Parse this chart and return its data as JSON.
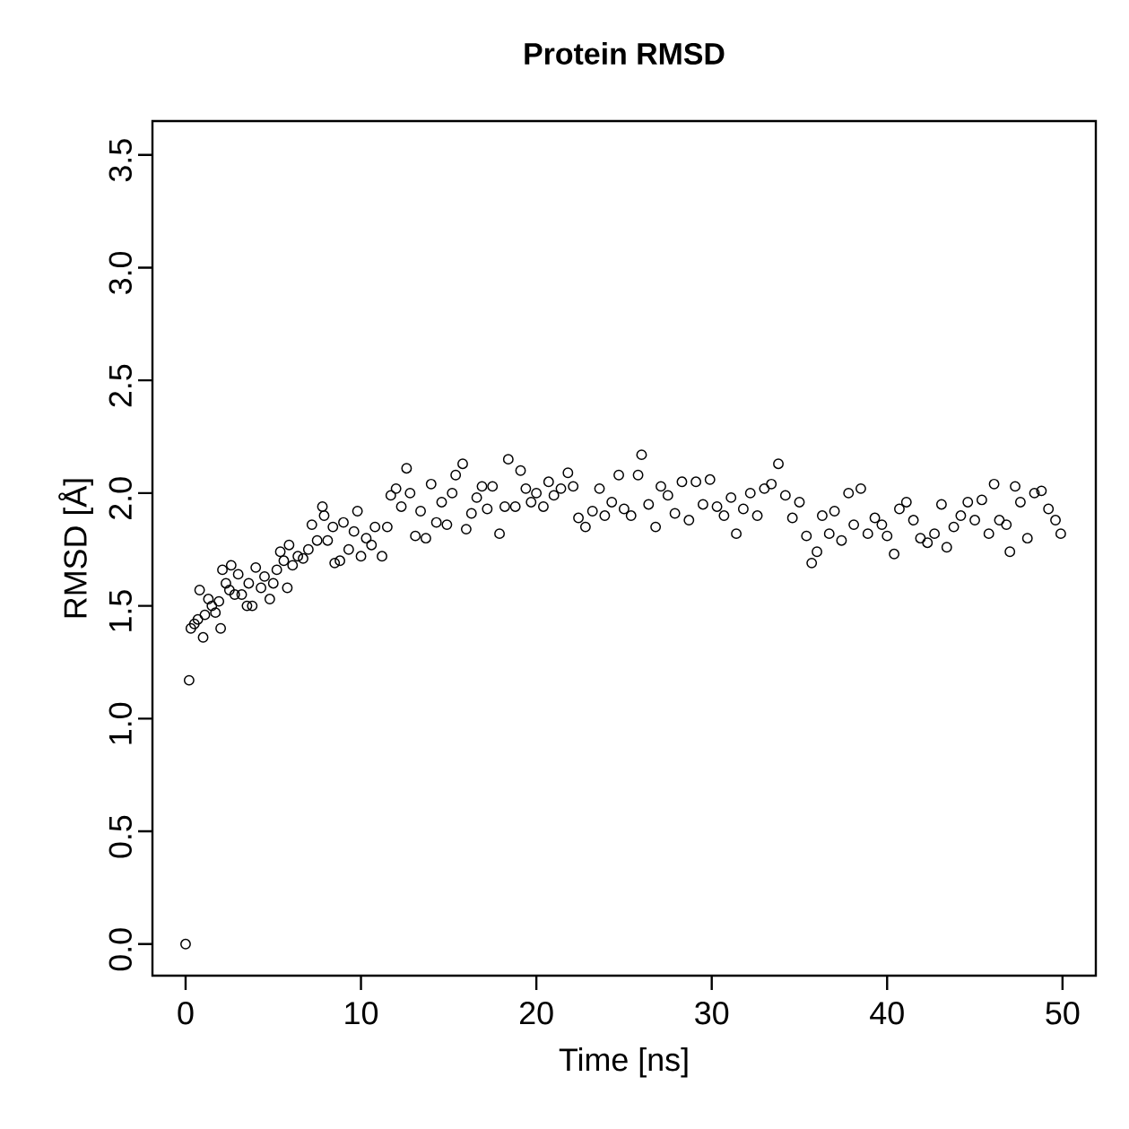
{
  "chart_data": {
    "type": "scatter",
    "title": "Protein RMSD",
    "xlabel": "Time [ns]",
    "ylabel": "RMSD [Å]",
    "xlim": [
      -1.89,
      51.9
    ],
    "ylim": [
      -0.14,
      3.65
    ],
    "xticks": [
      0,
      10,
      20,
      30,
      40,
      50
    ],
    "yticks": [
      {
        "value": 0,
        "label": "0.0"
      },
      {
        "value": 0.5,
        "label": "0.5"
      },
      {
        "value": 1,
        "label": "1.0"
      },
      {
        "value": 1.5,
        "label": "1.5"
      },
      {
        "value": 2,
        "label": "2.0"
      },
      {
        "value": 2.5,
        "label": "2.5"
      },
      {
        "value": 3,
        "label": "3.0"
      },
      {
        "value": 3.5,
        "label": "3.5"
      }
    ],
    "marker": "circle",
    "grid": false,
    "series": [
      {
        "color": "#000000",
        "x": [
          0,
          0.2,
          0.3,
          0.5,
          0.7,
          0.8,
          1.0,
          1.1,
          1.3,
          1.5,
          1.7,
          1.9,
          2.0,
          2.1,
          2.3,
          2.5,
          2.6,
          2.8,
          3.0,
          3.2,
          3.5,
          3.6,
          3.8,
          4.0,
          4.3,
          4.5,
          4.8,
          5.0,
          5.2,
          5.4,
          5.6,
          5.8,
          5.9,
          6.1,
          6.4,
          6.7,
          7.0,
          7.2,
          7.5,
          7.8,
          7.9,
          8.1,
          8.4,
          8.5,
          8.8,
          9.0,
          9.3,
          9.6,
          9.8,
          10.0,
          10.3,
          10.6,
          10.8,
          11.2,
          11.5,
          11.7,
          12.0,
          12.3,
          12.6,
          12.8,
          13.1,
          13.4,
          13.7,
          14.0,
          14.3,
          14.6,
          14.9,
          15.2,
          15.4,
          15.8,
          16.0,
          16.3,
          16.6,
          16.9,
          17.2,
          17.5,
          17.9,
          18.2,
          18.4,
          18.8,
          19.1,
          19.4,
          19.7,
          20.0,
          20.4,
          20.7,
          21.0,
          21.4,
          21.8,
          22.1,
          22.4,
          22.8,
          23.2,
          23.6,
          23.9,
          24.3,
          24.7,
          25.0,
          25.4,
          25.8,
          26.0,
          26.4,
          26.8,
          27.1,
          27.5,
          27.9,
          28.3,
          28.7,
          29.1,
          29.5,
          29.9,
          30.3,
          30.7,
          31.1,
          31.4,
          31.8,
          32.2,
          32.6,
          33.0,
          33.4,
          33.8,
          34.2,
          34.6,
          35.0,
          35.4,
          35.7,
          36.0,
          36.3,
          36.7,
          37.0,
          37.4,
          37.8,
          38.1,
          38.5,
          38.9,
          39.3,
          39.7,
          40.0,
          40.4,
          40.7,
          41.1,
          41.5,
          41.9,
          42.3,
          42.7,
          43.1,
          43.4,
          43.8,
          44.2,
          44.6,
          45.0,
          45.4,
          45.8,
          46.1,
          46.4,
          46.8,
          47.0,
          47.3,
          47.6,
          48.0,
          48.4,
          48.8,
          49.2,
          49.6,
          49.9
        ],
        "values": [
          0,
          1.17,
          1.4,
          1.42,
          1.44,
          1.57,
          1.36,
          1.46,
          1.53,
          1.5,
          1.47,
          1.52,
          1.4,
          1.66,
          1.6,
          1.57,
          1.68,
          1.55,
          1.64,
          1.55,
          1.5,
          1.6,
          1.5,
          1.67,
          1.58,
          1.63,
          1.53,
          1.6,
          1.66,
          1.74,
          1.7,
          1.58,
          1.77,
          1.68,
          1.72,
          1.71,
          1.75,
          1.86,
          1.79,
          1.94,
          1.9,
          1.79,
          1.85,
          1.69,
          1.7,
          1.87,
          1.75,
          1.83,
          1.92,
          1.72,
          1.8,
          1.77,
          1.85,
          1.72,
          1.85,
          1.99,
          2.02,
          1.94,
          2.11,
          2.0,
          1.81,
          1.92,
          1.8,
          2.04,
          1.87,
          1.96,
          1.86,
          2.0,
          2.08,
          2.13,
          1.84,
          1.91,
          1.98,
          2.03,
          1.93,
          2.03,
          1.82,
          1.94,
          2.15,
          1.94,
          2.1,
          2.02,
          1.96,
          2.0,
          1.94,
          2.05,
          1.99,
          2.02,
          2.09,
          2.03,
          1.89,
          1.85,
          1.92,
          2.02,
          1.9,
          1.96,
          2.08,
          1.93,
          1.9,
          2.08,
          2.17,
          1.95,
          1.85,
          2.03,
          1.99,
          1.91,
          2.05,
          1.88,
          2.05,
          1.95,
          2.06,
          1.94,
          1.9,
          1.98,
          1.82,
          1.93,
          2.0,
          1.9,
          2.02,
          2.04,
          2.13,
          1.99,
          1.89,
          1.96,
          1.81,
          1.69,
          1.74,
          1.9,
          1.82,
          1.92,
          1.79,
          2.0,
          1.86,
          2.02,
          1.82,
          1.89,
          1.86,
          1.81,
          1.73,
          1.93,
          1.96,
          1.88,
          1.8,
          1.78,
          1.82,
          1.95,
          1.76,
          1.85,
          1.9,
          1.96,
          1.88,
          1.97,
          1.82,
          2.04,
          1.88,
          1.86,
          1.74,
          2.03,
          1.96,
          1.8,
          2.0,
          2.01,
          1.93,
          1.88,
          1.82
        ]
      }
    ]
  }
}
